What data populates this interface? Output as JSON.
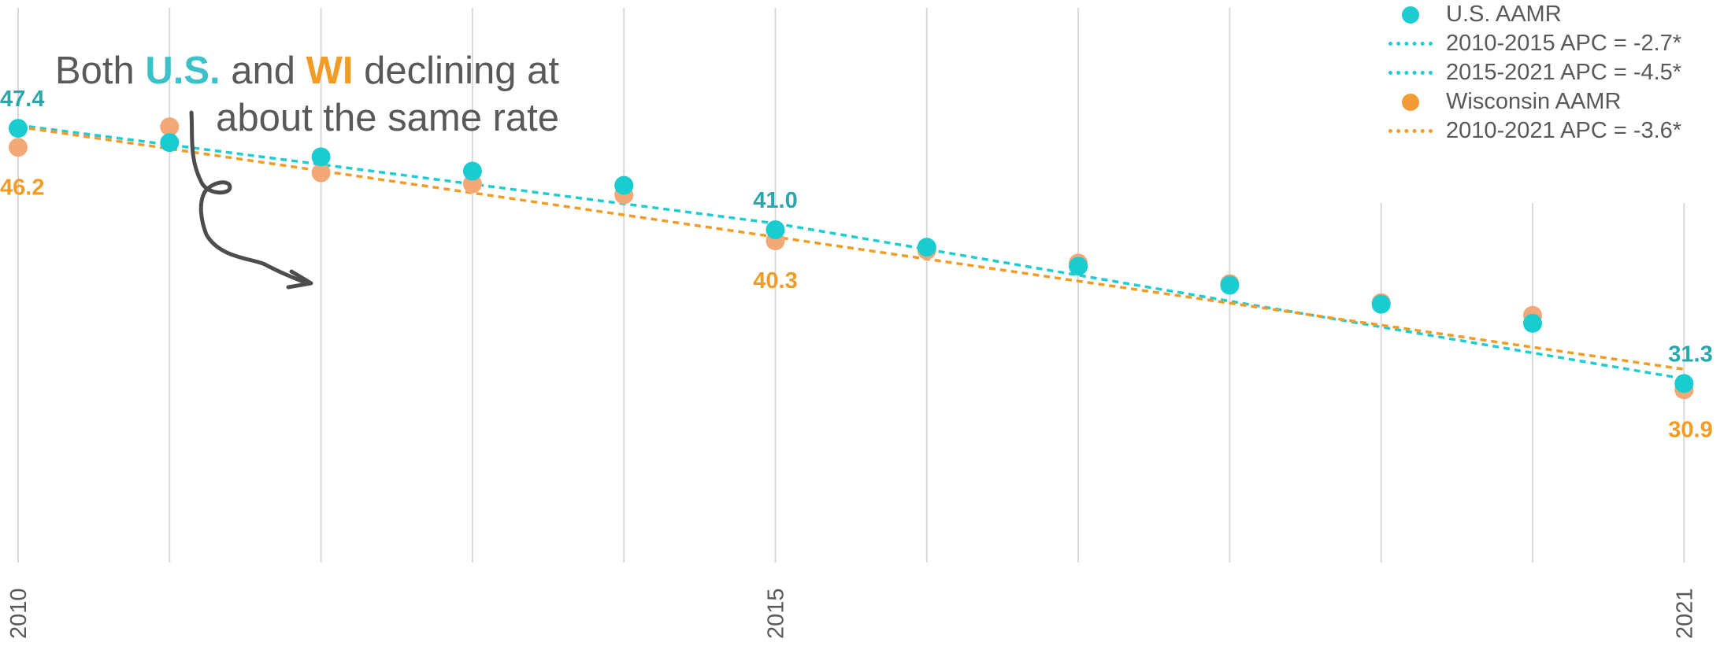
{
  "annotation": {
    "prefix": "Both ",
    "us": "U.S.",
    "middle": " and ",
    "wi": "WI",
    "suffix_line1": " declining at",
    "line2": "about the same rate"
  },
  "legend": [
    {
      "type": "dot",
      "color": "#1ecdd1",
      "label": "U.S. AAMR"
    },
    {
      "type": "dash",
      "color": "#1ecdd1",
      "label": "2010-2015 APC = -2.7*"
    },
    {
      "type": "dash",
      "color": "#1ecdd1",
      "label": "2015-2021 APC = -4.5*"
    },
    {
      "type": "dot",
      "color": "#f39c37",
      "label": "Wisconsin AAMR"
    },
    {
      "type": "dash",
      "color": "#f39c25",
      "label": "2010-2021 APC = -3.6*"
    }
  ],
  "chart_data": {
    "type": "line",
    "x": [
      2010,
      2011,
      2012,
      2013,
      2014,
      2015,
      2016,
      2017,
      2018,
      2019,
      2020,
      2021
    ],
    "ylim": [
      20,
      55
    ],
    "grid": "vertical",
    "series": [
      {
        "name": "U.S. AAMR",
        "color": "#1ecdd1",
        "values": [
          47.4,
          46.5,
          45.6,
          44.7,
          43.8,
          41.0,
          39.9,
          38.7,
          37.5,
          36.3,
          35.1,
          31.3
        ],
        "fit": [
          {
            "label": "2010-2015 APC = -2.7*",
            "points": [
              [
                2010,
                47.6
              ],
              [
                2015,
                41.4
              ]
            ]
          },
          {
            "label": "2015-2021 APC = -4.5*",
            "points": [
              [
                2015,
                41.4
              ],
              [
                2021,
                31.6
              ]
            ]
          }
        ]
      },
      {
        "name": "Wisconsin AAMR",
        "color": "#f39c37",
        "values": [
          46.2,
          47.5,
          44.6,
          43.9,
          43.2,
          40.3,
          39.7,
          38.9,
          37.6,
          36.4,
          35.6,
          30.9
        ],
        "fit": [
          {
            "label": "2010-2021 APC = -3.6*",
            "points": [
              [
                2010,
                47.5
              ],
              [
                2021,
                32.2
              ]
            ]
          }
        ]
      }
    ],
    "data_labels": [
      {
        "series": 0,
        "x": 2010,
        "text": "47.4",
        "pos": "above"
      },
      {
        "series": 1,
        "x": 2010,
        "text": "46.2",
        "pos": "below"
      },
      {
        "series": 0,
        "x": 2015,
        "text": "41.0",
        "pos": "above"
      },
      {
        "series": 1,
        "x": 2015,
        "text": "40.3",
        "pos": "below"
      },
      {
        "series": 0,
        "x": 2021,
        "text": "31.3",
        "pos": "above"
      },
      {
        "series": 1,
        "x": 2021,
        "text": "30.9",
        "pos": "below"
      }
    ],
    "tick_labels": [
      "2010",
      "2015",
      "2021"
    ]
  }
}
